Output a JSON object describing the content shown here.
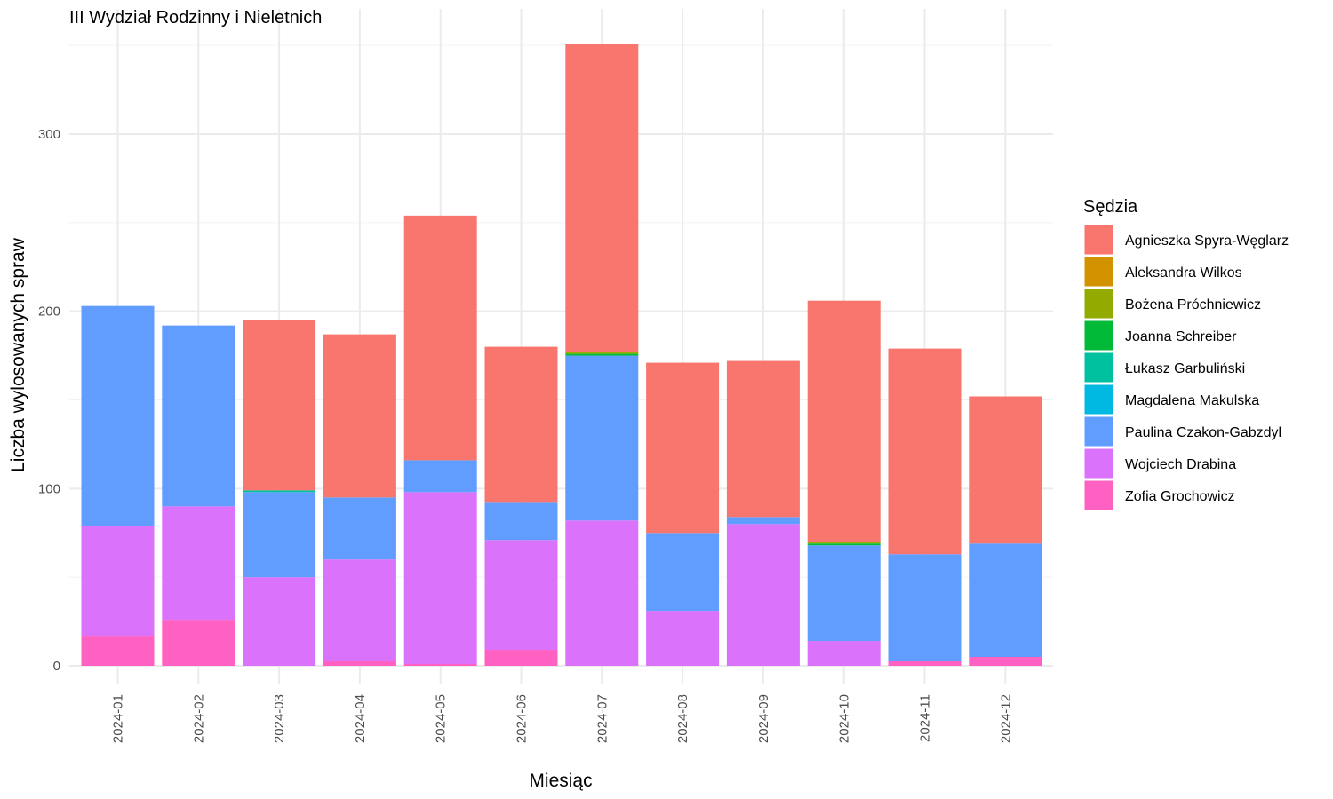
{
  "chart_data": {
    "type": "bar",
    "stacked": true,
    "title": "III Wydział Rodzinny i Nieletnich",
    "xlabel": "Miesiąc",
    "ylabel": "Liczba wylosowanych spraw",
    "ylim": [
      0,
      355
    ],
    "y_ticks": [
      0,
      100,
      200,
      300
    ],
    "grid": true,
    "legend_title": "Sędzia",
    "legend_position": "right",
    "categories": [
      "2024-01",
      "2024-02",
      "2024-03",
      "2024-04",
      "2024-05",
      "2024-06",
      "2024-07",
      "2024-08",
      "2024-09",
      "2024-10",
      "2024-11",
      "2024-12"
    ],
    "series": [
      {
        "name": "Agnieszka Spyra-Węglarz",
        "color": "#F8766D",
        "values": [
          0,
          0,
          96,
          92,
          138,
          88,
          174,
          96,
          88,
          136,
          116,
          83
        ]
      },
      {
        "name": "Aleksandra Wilkos",
        "color": "#D39200",
        "values": [
          0,
          0,
          0,
          0,
          0,
          0,
          0,
          0,
          0,
          0,
          0,
          0
        ]
      },
      {
        "name": "Bożena Próchniewicz",
        "color": "#93AA00",
        "values": [
          0,
          0,
          0,
          0,
          0,
          0,
          1,
          0,
          0,
          1,
          0,
          0
        ]
      },
      {
        "name": "Joanna Schreiber",
        "color": "#00BA38",
        "values": [
          0,
          0,
          0,
          0,
          0,
          0,
          1,
          0,
          0,
          1,
          0,
          0
        ]
      },
      {
        "name": "Łukasz Garbuliński",
        "color": "#00C19F",
        "values": [
          0,
          0,
          1,
          0,
          0,
          0,
          0,
          0,
          0,
          0,
          0,
          0
        ]
      },
      {
        "name": "Magdalena Makulska",
        "color": "#00B9E3",
        "values": [
          0,
          0,
          0,
          0,
          0,
          0,
          0,
          0,
          0,
          0,
          0,
          0
        ]
      },
      {
        "name": "Paulina Czakon-Gabzdyl",
        "color": "#619CFF",
        "values": [
          124,
          102,
          48,
          35,
          18,
          21,
          93,
          44,
          4,
          54,
          60,
          64
        ]
      },
      {
        "name": "Wojciech Drabina",
        "color": "#DB72FB",
        "values": [
          62,
          64,
          50,
          57,
          97,
          62,
          82,
          31,
          80,
          14,
          0,
          0
        ]
      },
      {
        "name": "Zofia Grochowicz",
        "color": "#FF61C3",
        "values": [
          17,
          26,
          0,
          3,
          1,
          9,
          0,
          0,
          0,
          0,
          3,
          5
        ]
      }
    ]
  }
}
